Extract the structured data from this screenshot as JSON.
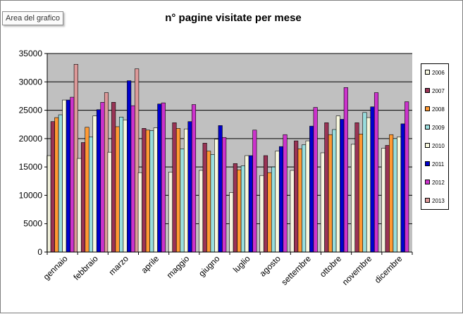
{
  "tooltip": {
    "text": "Area del grafico"
  },
  "chart_data": {
    "type": "bar",
    "title": "n° pagine visitate per mese",
    "xlabel": "",
    "ylabel": "",
    "ylim": [
      0,
      35000
    ],
    "yticks": [
      0,
      5000,
      10000,
      15000,
      20000,
      25000,
      30000,
      35000
    ],
    "grid": true,
    "legend_position": "right",
    "categories": [
      "gennaio",
      "febbraio",
      "marzo",
      "aprile",
      "maggio",
      "giugno",
      "luglio",
      "agosto",
      "settembre",
      "ottobre",
      "novembre",
      "dicembre"
    ],
    "series": [
      {
        "name": "2006",
        "color": "#f5f5e0",
        "values": [
          17000,
          16500,
          17600,
          14000,
          14100,
          14400,
          10500,
          13500,
          14400,
          17500,
          19000,
          18300
        ]
      },
      {
        "name": "2007",
        "color": "#993355",
        "values": [
          23000,
          19300,
          26400,
          21800,
          22800,
          19200,
          15600,
          17000,
          19600,
          22800,
          22800,
          18800
        ]
      },
      {
        "name": "2008",
        "color": "#ff9933",
        "values": [
          23700,
          22000,
          22100,
          21500,
          21800,
          17800,
          14500,
          14000,
          18200,
          20700,
          20800,
          20700
        ]
      },
      {
        "name": "2009",
        "color": "#99dddd",
        "values": [
          24200,
          20300,
          23800,
          21400,
          18200,
          17200,
          15200,
          15000,
          18900,
          21600,
          24600,
          20000
        ]
      },
      {
        "name": "2010",
        "color": "#f8f8dd",
        "values": [
          26800,
          24000,
          23300,
          21900,
          21700,
          19900,
          17000,
          17800,
          19600,
          24000,
          23700,
          20300
        ]
      },
      {
        "name": "2011",
        "color": "#0000cc",
        "values": [
          26800,
          25100,
          30200,
          26100,
          23000,
          22300,
          17000,
          18600,
          22200,
          23400,
          25600,
          22600
        ]
      },
      {
        "name": "2012",
        "color": "#cc33cc",
        "values": [
          27300,
          26400,
          25800,
          26300,
          26000,
          20200,
          21500,
          20700,
          25500,
          29000,
          28100,
          26500
        ]
      },
      {
        "name": "2013",
        "color": "#dd9999",
        "values": [
          33100,
          28100,
          32300,
          null,
          null,
          null,
          null,
          null,
          null,
          null,
          null,
          null
        ]
      }
    ]
  }
}
